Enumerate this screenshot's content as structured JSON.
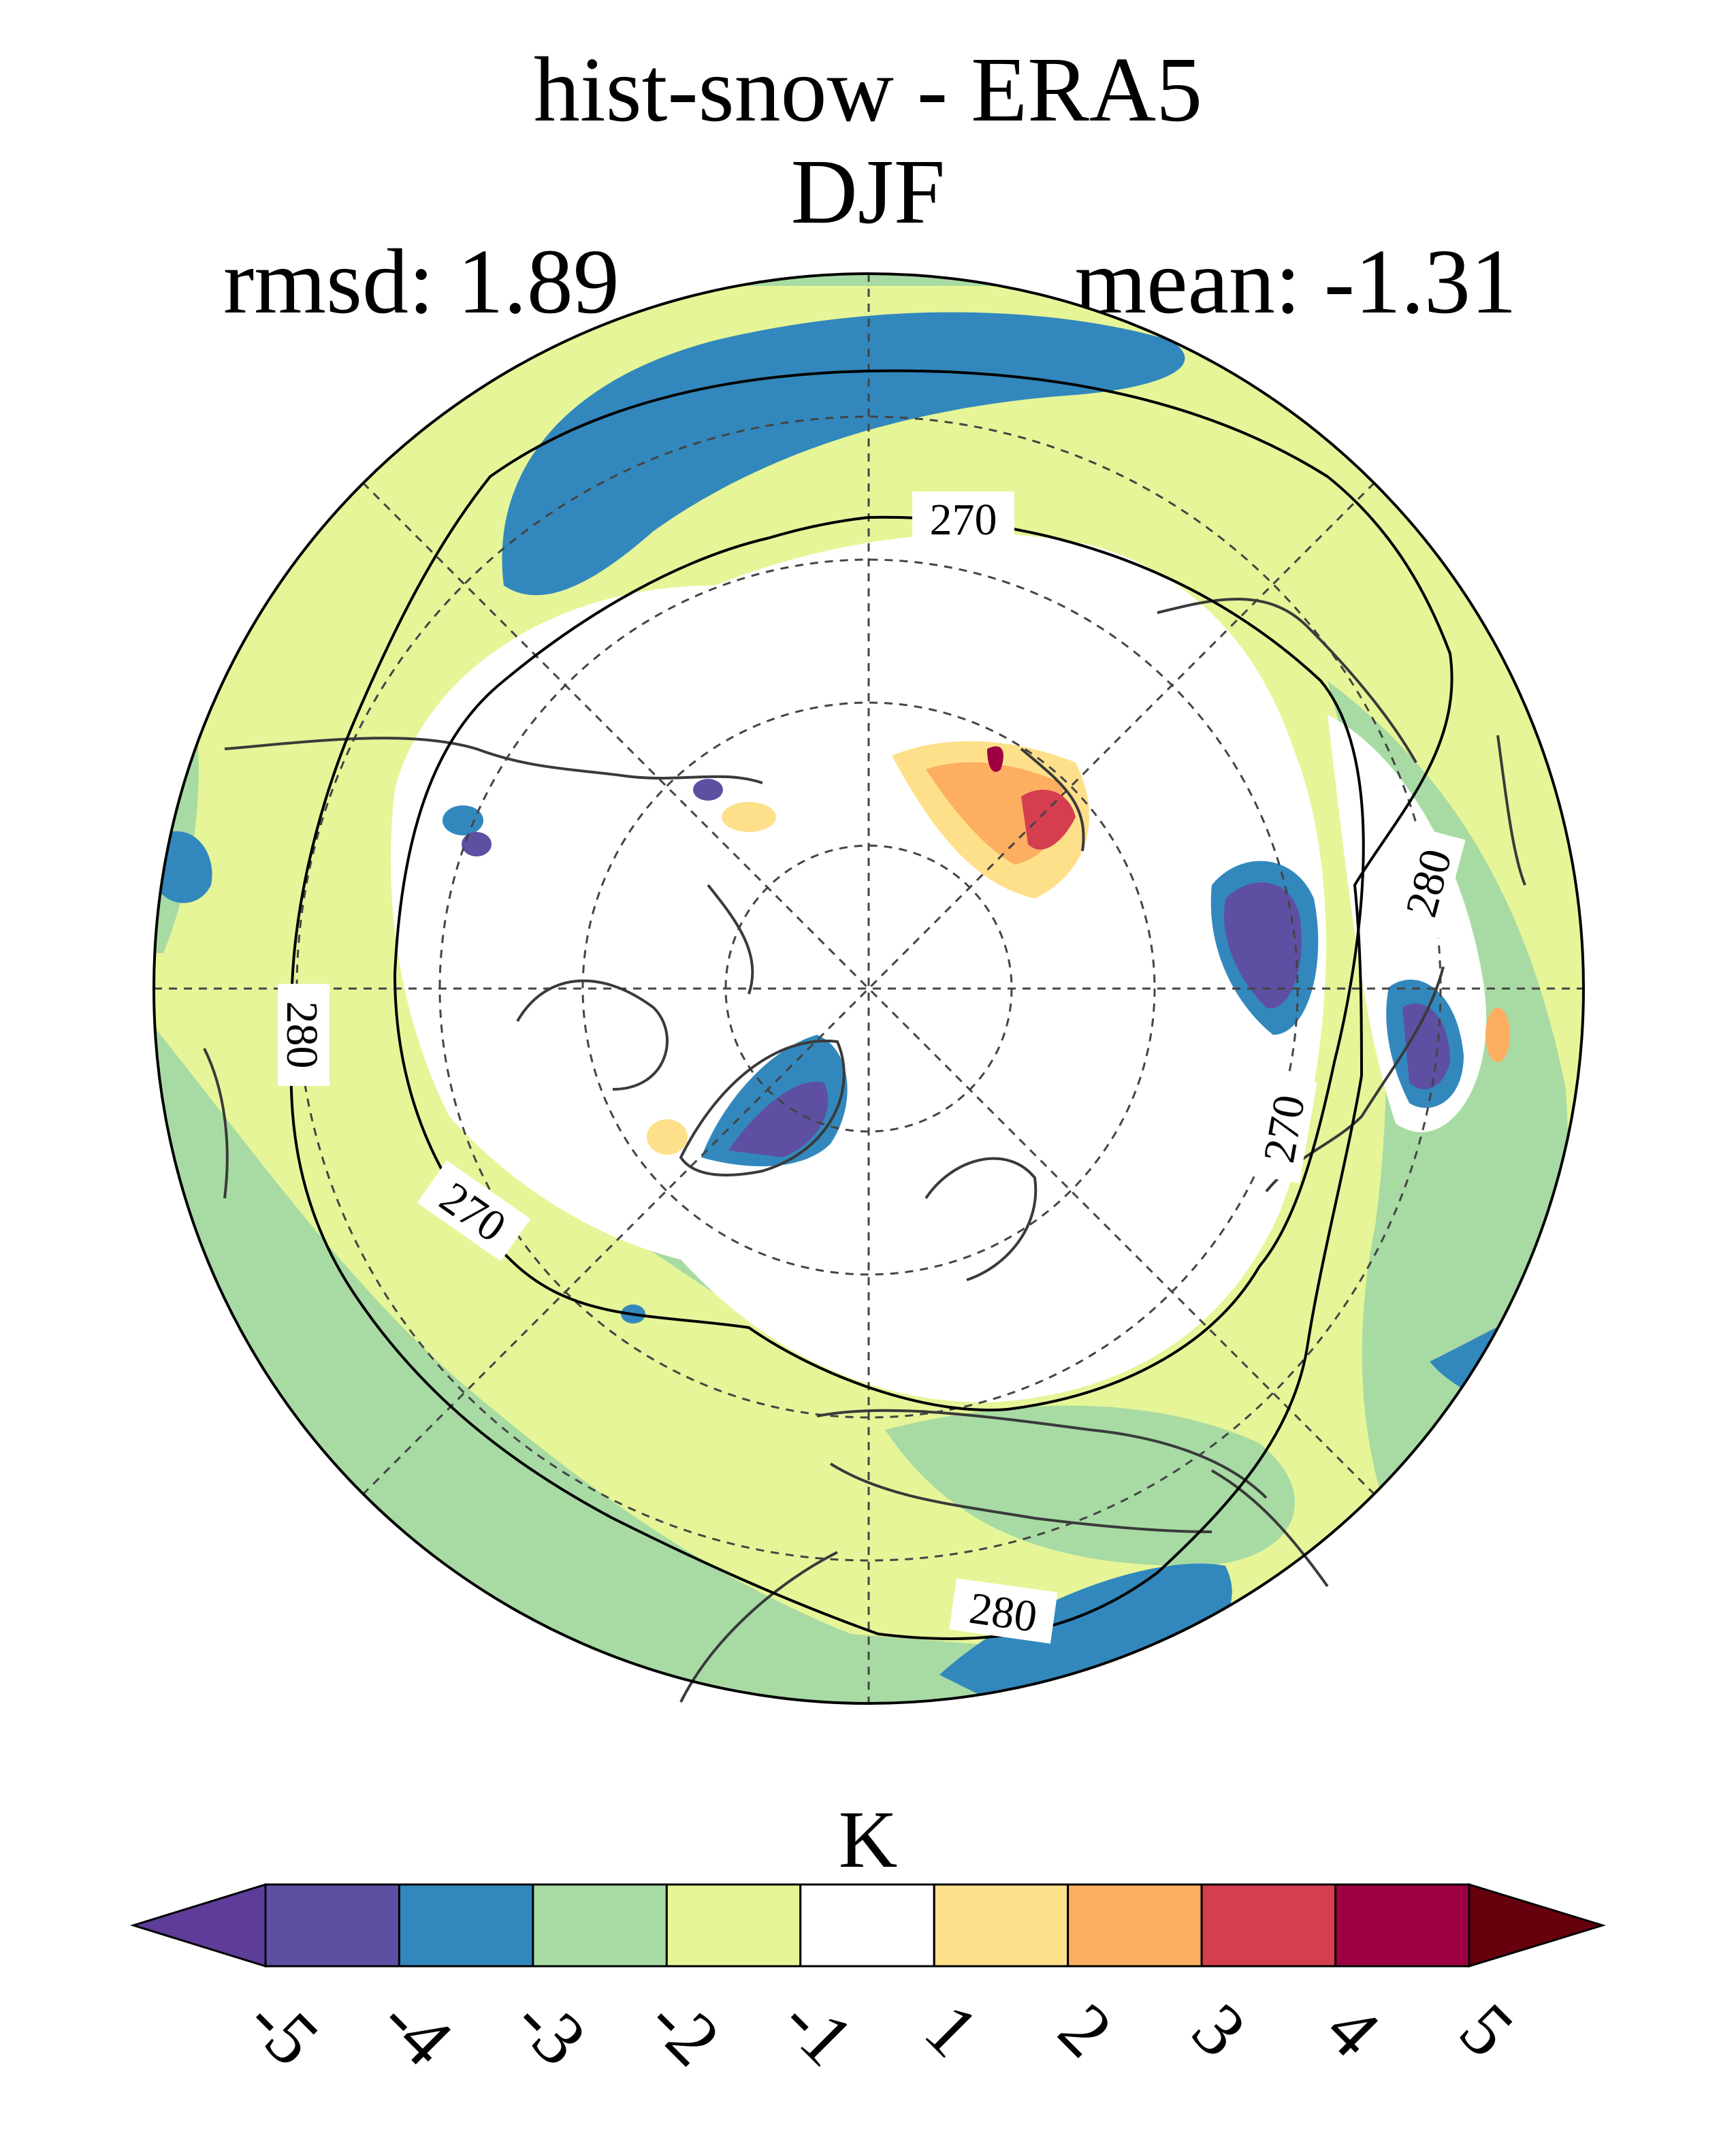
{
  "figure": {
    "title_line1": "hist-snow - ERA5",
    "title_line2": "DJF",
    "rmsd_text": "rmsd: 1.89",
    "mean_text": "mean: -1.31"
  },
  "map": {
    "projection": "north-polar-stereographic",
    "contours": [
      {
        "label": "270"
      },
      {
        "label": "270"
      },
      {
        "label": "270"
      },
      {
        "label": "280"
      },
      {
        "label": "280"
      },
      {
        "label": "280"
      }
    ]
  },
  "colorbar": {
    "unit": "K",
    "levels": [
      "-5",
      "-4",
      "-3",
      "-2",
      "-1",
      "1",
      "2",
      "3",
      "4",
      "5"
    ],
    "colors": {
      "below": "#5e3c99",
      "bins": [
        "#5e4fa2",
        "#3288bd",
        "#a8dba4",
        "#e6f598",
        "#ffffff",
        "#fee08b",
        "#fdae61",
        "#d53e4f",
        "#9e0142"
      ],
      "above": "#67000d"
    }
  },
  "colors": {
    "ocean_light": "#e6f598",
    "ocean_green": "#a8dba4",
    "blue": "#3288bd",
    "purple": "#5e4fa2",
    "white": "#ffffff",
    "orange_light": "#fee08b",
    "orange": "#fdae61",
    "red": "#d53e4f",
    "darkred": "#9e0142",
    "coast": "#3a3a3a"
  }
}
